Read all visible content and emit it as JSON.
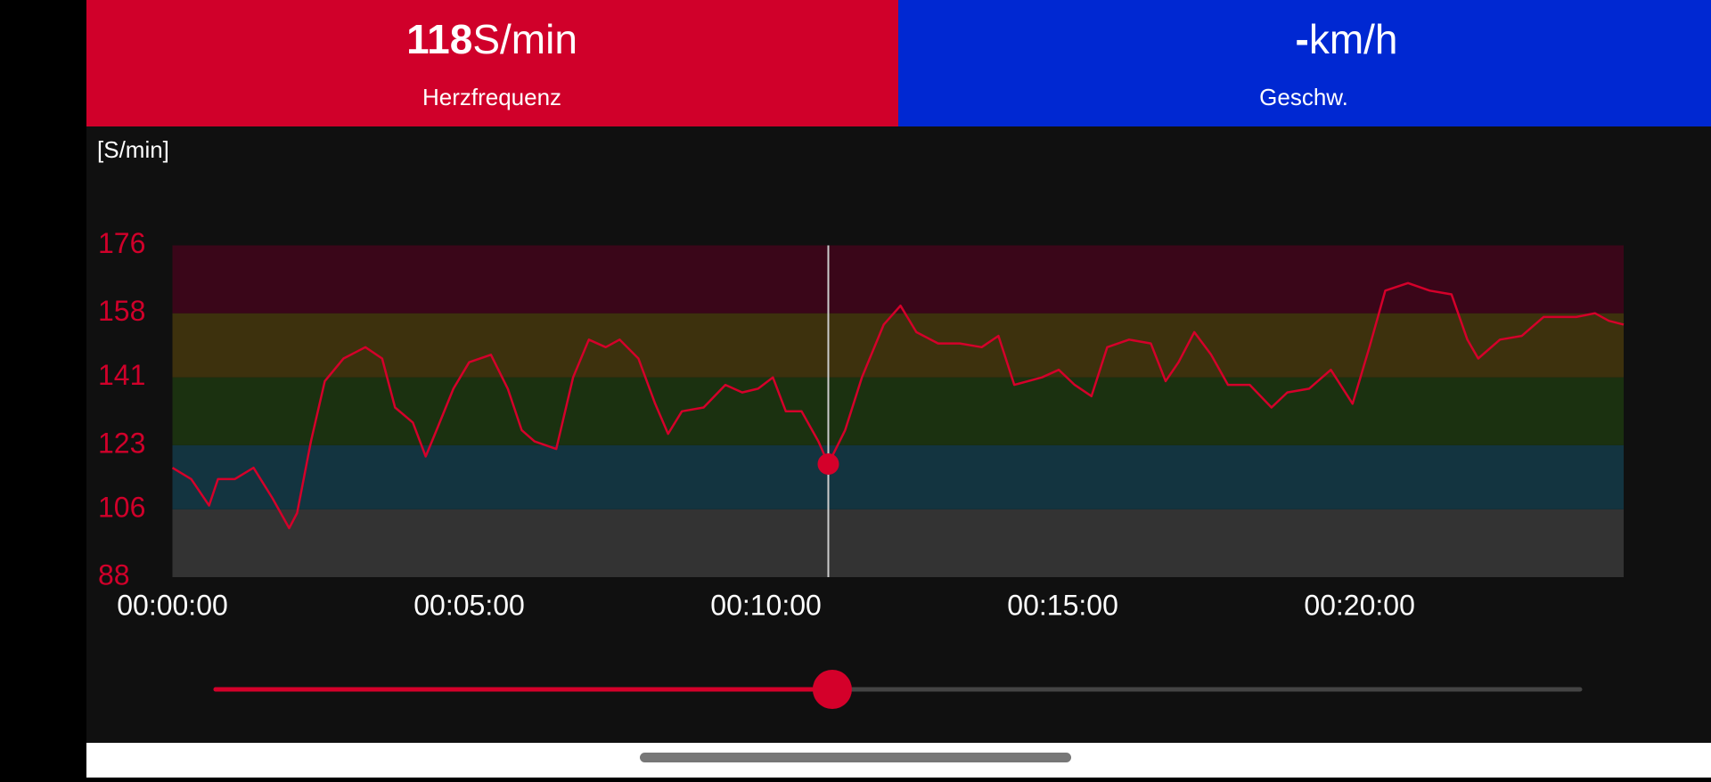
{
  "header": {
    "left": {
      "unit": "S/min",
      "label": "Herzfrequenz"
    },
    "right": {
      "value": "-",
      "unit": "km/h",
      "label": "Geschw."
    }
  },
  "chart_data": {
    "type": "line",
    "y_unit_label": "[S/min]",
    "color": "#d4002a",
    "x": [
      0,
      19,
      37,
      46,
      63,
      82,
      101,
      118,
      126,
      140,
      154,
      173,
      195,
      212,
      225,
      243,
      256,
      267,
      284,
      300,
      322,
      339,
      353,
      366,
      388,
      405,
      421,
      438,
      452,
      471,
      488,
      501,
      515,
      537,
      559,
      576,
      592,
      607,
      620,
      636,
      653,
      663,
      680,
      697,
      719,
      736,
      752,
      774,
      796,
      818,
      835,
      851,
      879,
      896,
      912,
      929,
      945,
      967,
      989,
      1004,
      1017,
      1033,
      1050,
      1067,
      1089,
      1111,
      1127,
      1149,
      1171,
      1193,
      1210,
      1226,
      1249,
      1271,
      1293,
      1309,
      1320,
      1342,
      1364,
      1386,
      1403,
      1419,
      1438,
      1452,
      1467
    ],
    "values": [
      117,
      114,
      107,
      114,
      114,
      117,
      109,
      101,
      105,
      124,
      140,
      146,
      149,
      146,
      133,
      129,
      120,
      127,
      138,
      145,
      147,
      138,
      127,
      124,
      122,
      141,
      151,
      149,
      151,
      146,
      134,
      126,
      132,
      133,
      139,
      137,
      138,
      141,
      132,
      132,
      124,
      118,
      127,
      141,
      155,
      160,
      153,
      150,
      150,
      149,
      152,
      139,
      141,
      143,
      139,
      136,
      149,
      151,
      150,
      140,
      145,
      153,
      147,
      139,
      139,
      133,
      137,
      138,
      143,
      134,
      149,
      164,
      166,
      164,
      163,
      151,
      146,
      151,
      152,
      157,
      157,
      157,
      158,
      156,
      155
    ],
    "xlim": [
      0,
      1467
    ],
    "ylim": [
      88,
      176
    ],
    "yticks": [
      88,
      106,
      123,
      141,
      158,
      176
    ],
    "xticks": [
      {
        "value": 0,
        "label": "00:00:00"
      },
      {
        "value": 300,
        "label": "00:05:00"
      },
      {
        "value": 600,
        "label": "00:10:00"
      },
      {
        "value": 900,
        "label": "00:15:00"
      },
      {
        "value": 1200,
        "label": "00:20:00"
      }
    ],
    "zone_colors": [
      "#333333",
      "#133440",
      "#1b3110",
      "#3d310d",
      "#3a0619"
    ],
    "cursor": {
      "x": 663,
      "value": 118
    }
  }
}
